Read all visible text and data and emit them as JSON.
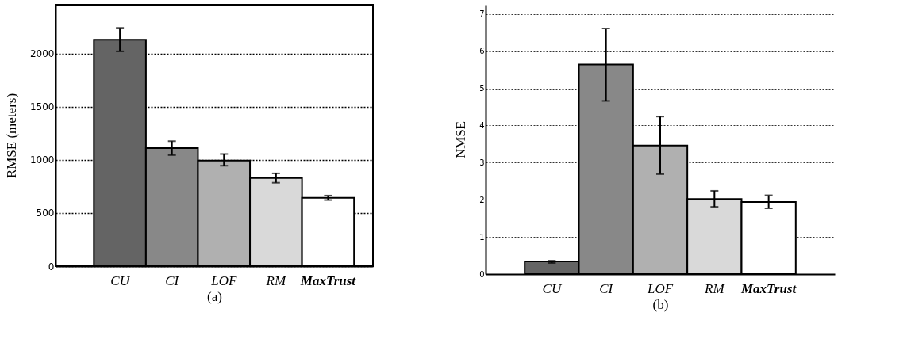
{
  "chart_data": [
    {
      "type": "bar",
      "xlabel": "(a)",
      "ylabel": "RMSE (meters)",
      "categories": [
        "CU",
        "CI",
        "LOF",
        "RM",
        "MaxTrust"
      ],
      "values": [
        2130,
        1111,
        994,
        829,
        643
      ],
      "errors": [
        [
          2021,
          2242
        ],
        [
          1045,
          1176
        ],
        [
          945,
          1055
        ],
        [
          785,
          873
        ],
        [
          622,
          664
        ]
      ],
      "colors": [
        "#646464",
        "#888888",
        "#b0b0b0",
        "#d9d9d9",
        "#ffffff"
      ],
      "ylim": [
        0,
        2460
      ],
      "yticks": [
        0,
        500,
        1000,
        1500,
        2000
      ],
      "grid": "y"
    },
    {
      "type": "bar",
      "xlabel": "(b)",
      "ylabel": "NMSE",
      "categories": [
        "CU",
        "CI",
        "LOF",
        "RM",
        "MaxTrust"
      ],
      "values": [
        0.34,
        5.64,
        3.46,
        2.02,
        1.94
      ],
      "errors": [
        [
          0.3,
          0.36
        ],
        [
          4.66,
          6.61
        ],
        [
          2.69,
          4.24
        ],
        [
          1.81,
          2.24
        ],
        [
          1.77,
          2.12
        ]
      ],
      "colors": [
        "#646464",
        "#888888",
        "#b0b0b0",
        "#d9d9d9",
        "#ffffff"
      ],
      "ylim": [
        0,
        7.25
      ],
      "yticks": [
        0,
        1,
        2,
        3,
        4,
        5,
        6,
        7
      ],
      "grid": "y"
    }
  ]
}
